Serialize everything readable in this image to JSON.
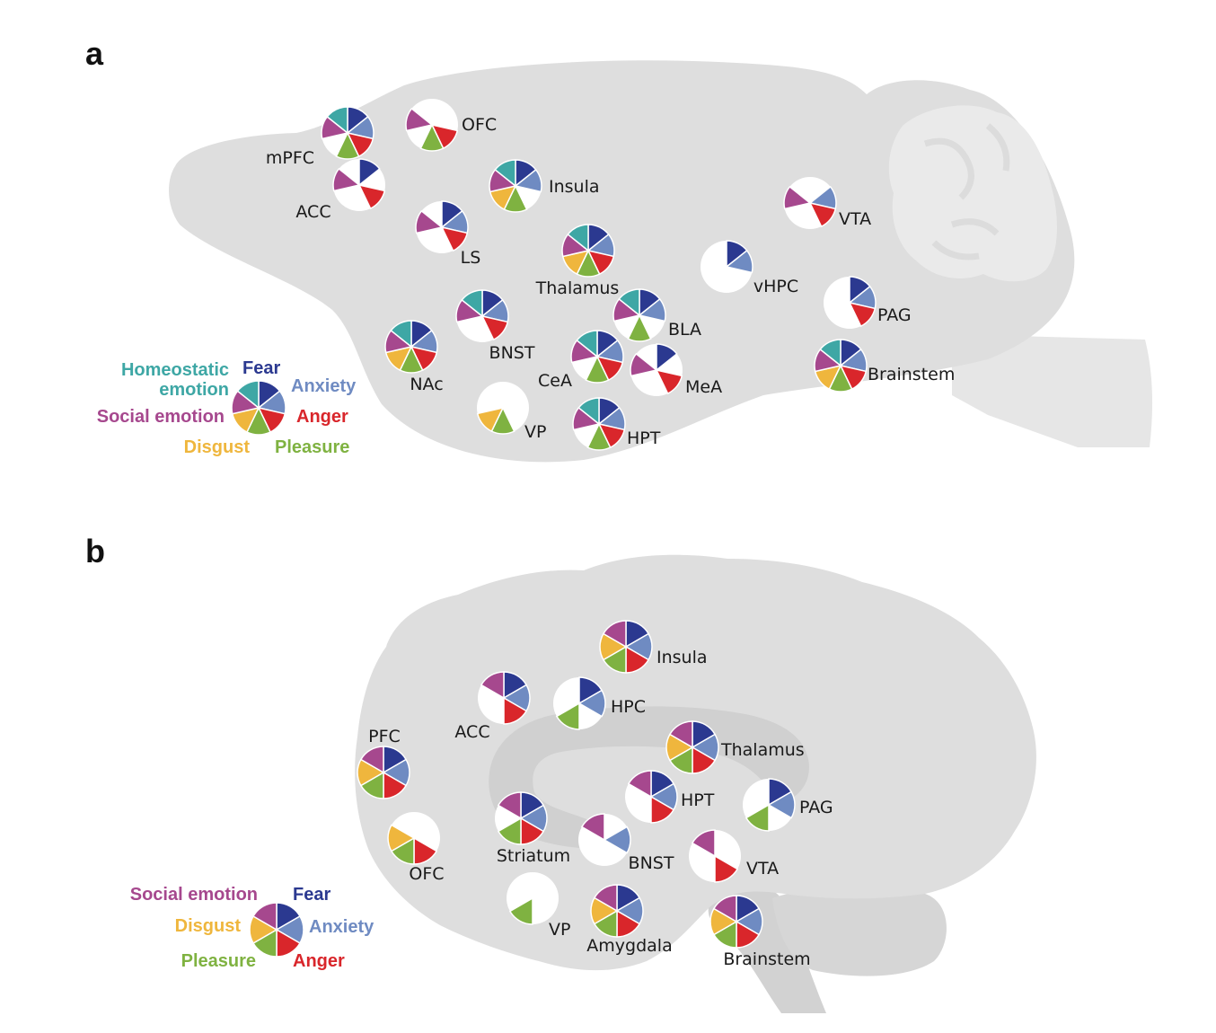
{
  "colors": {
    "Fear": "#2b3990",
    "Anxiety": "#6f8bc2",
    "Anger": "#d9262b",
    "Pleasure": "#7fb241",
    "Disgust": "#efb63d",
    "Social emotion": "#a6488e",
    "Homeostatic emotion": "#3ea7a5"
  },
  "panels": [
    {
      "letter": "a",
      "legend": {
        "order": [
          "Fear",
          "Anxiety",
          "Anger",
          "Pleasure",
          "Disgust",
          "Social emotion",
          "Homeostatic emotion"
        ],
        "labels": [
          "Fear",
          "Anxiety",
          "Anger",
          "Pleasure",
          "Disgust",
          "Social emotion",
          "Homeostatic",
          "emotion"
        ]
      },
      "regions": [
        {
          "name": "mPFC",
          "emotions": [
            "Fear",
            "Anxiety",
            "Anger",
            "Pleasure",
            "Social emotion",
            "Homeostatic emotion"
          ]
        },
        {
          "name": "OFC",
          "emotions": [
            "Anger",
            "Pleasure",
            "Social emotion"
          ]
        },
        {
          "name": "ACC",
          "emotions": [
            "Fear",
            "Anger",
            "Social emotion"
          ]
        },
        {
          "name": "Insula",
          "emotions": [
            "Fear",
            "Anxiety",
            "Pleasure",
            "Disgust",
            "Social emotion",
            "Homeostatic emotion"
          ]
        },
        {
          "name": "LS",
          "emotions": [
            "Fear",
            "Anxiety",
            "Anger",
            "Social emotion"
          ]
        },
        {
          "name": "Thalamus",
          "emotions": [
            "Fear",
            "Anxiety",
            "Anger",
            "Pleasure",
            "Disgust",
            "Social emotion",
            "Homeostatic emotion"
          ]
        },
        {
          "name": "vHPC",
          "emotions": [
            "Fear",
            "Anxiety"
          ]
        },
        {
          "name": "VTA",
          "emotions": [
            "Anxiety",
            "Anger",
            "Social emotion"
          ]
        },
        {
          "name": "BNST",
          "emotions": [
            "Fear",
            "Anxiety",
            "Anger",
            "Social emotion",
            "Homeostatic emotion"
          ]
        },
        {
          "name": "BLA",
          "emotions": [
            "Fear",
            "Anxiety",
            "Pleasure",
            "Social emotion",
            "Homeostatic emotion"
          ]
        },
        {
          "name": "PAG",
          "emotions": [
            "Fear",
            "Anxiety",
            "Anger"
          ]
        },
        {
          "name": "NAc",
          "emotions": [
            "Fear",
            "Anxiety",
            "Anger",
            "Pleasure",
            "Disgust",
            "Social emotion",
            "Homeostatic emotion"
          ]
        },
        {
          "name": "CeA",
          "emotions": [
            "Fear",
            "Anxiety",
            "Anger",
            "Pleasure",
            "Social emotion",
            "Homeostatic emotion"
          ]
        },
        {
          "name": "MeA",
          "emotions": [
            "Fear",
            "Anger",
            "Social emotion"
          ]
        },
        {
          "name": "Brainstem",
          "emotions": [
            "Fear",
            "Anxiety",
            "Anger",
            "Pleasure",
            "Disgust",
            "Social emotion",
            "Homeostatic emotion"
          ]
        },
        {
          "name": "VP",
          "emotions": [
            "Pleasure",
            "Disgust"
          ]
        },
        {
          "name": "HPT",
          "emotions": [
            "Fear",
            "Anxiety",
            "Anger",
            "Pleasure",
            "Social emotion",
            "Homeostatic emotion"
          ]
        }
      ]
    },
    {
      "letter": "b",
      "legend": {
        "order": [
          "Fear",
          "Anxiety",
          "Anger",
          "Pleasure",
          "Disgust",
          "Social emotion"
        ],
        "labels": [
          "Fear",
          "Anxiety",
          "Anger",
          "Pleasure",
          "Disgust",
          "Social emotion"
        ]
      },
      "regions": [
        {
          "name": "Insula",
          "emotions": [
            "Fear",
            "Anxiety",
            "Anger",
            "Pleasure",
            "Disgust",
            "Social emotion"
          ]
        },
        {
          "name": "ACC",
          "emotions": [
            "Fear",
            "Anxiety",
            "Anger",
            "Social emotion"
          ]
        },
        {
          "name": "HPC",
          "emotions": [
            "Fear",
            "Anxiety",
            "Pleasure"
          ]
        },
        {
          "name": "PFC",
          "emotions": [
            "Fear",
            "Anxiety",
            "Anger",
            "Pleasure",
            "Disgust",
            "Social emotion"
          ]
        },
        {
          "name": "Thalamus",
          "emotions": [
            "Fear",
            "Anxiety",
            "Anger",
            "Pleasure",
            "Disgust",
            "Social emotion"
          ]
        },
        {
          "name": "HPT",
          "emotions": [
            "Fear",
            "Anxiety",
            "Anger",
            "Social emotion"
          ]
        },
        {
          "name": "PAG",
          "emotions": [
            "Fear",
            "Anxiety",
            "Pleasure"
          ]
        },
        {
          "name": "Striatum",
          "emotions": [
            "Fear",
            "Anxiety",
            "Anger",
            "Pleasure",
            "Social emotion"
          ]
        },
        {
          "name": "OFC",
          "emotions": [
            "Anger",
            "Pleasure",
            "Disgust"
          ]
        },
        {
          "name": "BNST",
          "emotions": [
            "Anxiety",
            "Social emotion"
          ]
        },
        {
          "name": "VTA",
          "emotions": [
            "Anger",
            "Social emotion"
          ]
        },
        {
          "name": "VP",
          "emotions": [
            "Pleasure"
          ]
        },
        {
          "name": "Amygdala",
          "emotions": [
            "Fear",
            "Anxiety",
            "Anger",
            "Pleasure",
            "Disgust",
            "Social emotion"
          ]
        },
        {
          "name": "Brainstem",
          "emotions": [
            "Fear",
            "Anxiety",
            "Anger",
            "Pleasure",
            "Disgust",
            "Social emotion"
          ]
        }
      ]
    }
  ]
}
